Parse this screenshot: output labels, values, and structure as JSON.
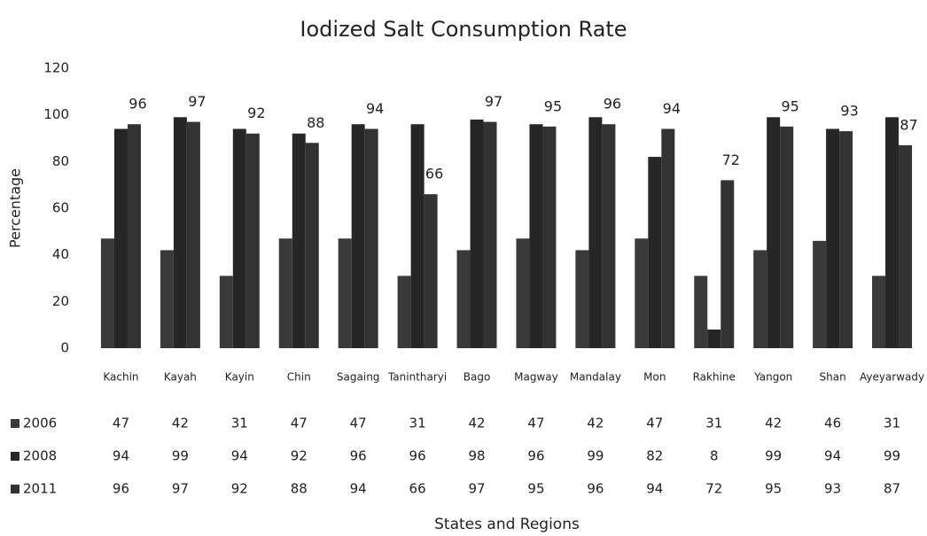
{
  "chart_data": {
    "type": "bar",
    "title": "Iodized Salt Consumption Rate",
    "x_label": "States and Regions",
    "y_label": "Percentage",
    "categories": [
      "Kachin",
      "Kayah",
      "Kayin",
      "Chin",
      "Sagaing",
      "Tanintharyi",
      "Bago",
      "Magway",
      "Mandalay",
      "Mon",
      "Rakhine",
      "Yangon",
      "Shan",
      "Ayeyarwady"
    ],
    "series": [
      {
        "name": "2006",
        "color": "#3a3a3a",
        "values": [
          47,
          42,
          31,
          47,
          47,
          31,
          42,
          47,
          42,
          47,
          31,
          42,
          46,
          31
        ]
      },
      {
        "name": "2008",
        "color": "#262626",
        "values": [
          94,
          99,
          94,
          92,
          96,
          96,
          98,
          96,
          99,
          82,
          8,
          99,
          94,
          99
        ]
      },
      {
        "name": "2011",
        "color": "#333333",
        "values": [
          96,
          97,
          92,
          88,
          94,
          66,
          97,
          95,
          96,
          94,
          72,
          95,
          93,
          87
        ]
      }
    ],
    "ylim": [
      0,
      120
    ],
    "yticks": [
      0,
      20,
      40,
      60,
      80,
      100,
      120
    ],
    "data_labels_series": 2
  }
}
